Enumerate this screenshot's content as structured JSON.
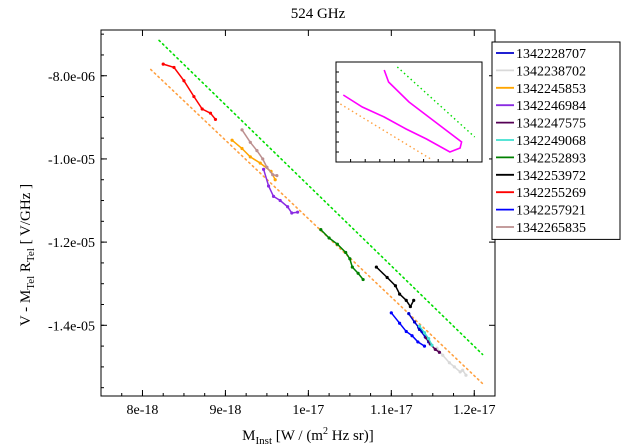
{
  "chart_data": {
    "type": "line",
    "title": "524 GHz",
    "xlabel": {
      "main": "M",
      "sub": "Inst",
      "rest": " [W / (m",
      "sup": "2",
      "rest2": " Hz sr)]"
    },
    "ylabel": {
      "p1": "V - M",
      "s1": "Tel",
      "p2": " R",
      "s2": "Tel",
      "p3": " [ V/GHz ]"
    },
    "xlim": [
      7.5e-18,
      1.225e-17
    ],
    "ylim": [
      -1.57e-05,
      -6.9e-06
    ],
    "x_ticks": [
      {
        "v": 8e-18,
        "label": "8e-18"
      },
      {
        "v": 9e-18,
        "label": "9e-18"
      },
      {
        "v": 1e-17,
        "label": "1e-17"
      },
      {
        "v": 1.1e-17,
        "label": "1.1e-17"
      },
      {
        "v": 1.2e-17,
        "label": "1.2e-17"
      }
    ],
    "y_ticks": [
      {
        "v": -8e-06,
        "label": "-8.0e-06"
      },
      {
        "v": -1e-05,
        "label": "-1.0e-05"
      },
      {
        "v": -1.2e-05,
        "label": "-1.2e-05"
      },
      {
        "v": -1.4e-05,
        "label": "-1.4e-05"
      }
    ],
    "legend_position": "right",
    "series": [
      {
        "name": "1342228707",
        "color": "#0000cc",
        "points": [
          [
            1.121e-17,
            -1.372e-05
          ],
          [
            1.128e-17,
            -1.392e-05
          ],
          [
            1.133e-17,
            -1.405e-05
          ],
          [
            1.137e-17,
            -1.415e-05
          ],
          [
            1.134e-17,
            -1.41e-05
          ],
          [
            1.141e-17,
            -1.428e-05
          ],
          [
            1.145e-17,
            -1.44e-05
          ]
        ]
      },
      {
        "name": "1342238702",
        "color": "#d9d9d9",
        "points": [
          [
            1.155e-17,
            -1.455e-05
          ],
          [
            1.162e-17,
            -1.472e-05
          ],
          [
            1.17e-17,
            -1.49e-05
          ],
          [
            1.176e-17,
            -1.5e-05
          ],
          [
            1.183e-17,
            -1.512e-05
          ],
          [
            1.186e-17,
            -1.508e-05
          ],
          [
            1.19e-17,
            -1.52e-05
          ]
        ]
      },
      {
        "name": "1342245853",
        "color": "#ffa500",
        "points": [
          [
            9.08e-18,
            -9.55e-06
          ],
          [
            9.2e-18,
            -9.75e-06
          ],
          [
            9.3e-18,
            -9.95e-06
          ],
          [
            9.42e-18,
            -1.01e-05
          ],
          [
            9.55e-18,
            -1.03e-05
          ],
          [
            9.6e-18,
            -1.05e-05
          ]
        ]
      },
      {
        "name": "1342246984",
        "color": "#8a2be2",
        "points": [
          [
            9.46e-18,
            -1.025e-05
          ],
          [
            9.52e-18,
            -1.065e-05
          ],
          [
            9.58e-18,
            -1.09e-05
          ],
          [
            9.66e-18,
            -1.1e-05
          ],
          [
            9.75e-18,
            -1.115e-05
          ],
          [
            9.8e-18,
            -1.13e-05
          ],
          [
            9.87e-18,
            -1.128e-05
          ]
        ]
      },
      {
        "name": "1342247575",
        "color": "#550055",
        "points": [
          [
            1.142e-17,
            -1.43e-05
          ],
          [
            1.147e-17,
            -1.445e-05
          ],
          [
            1.153e-17,
            -1.458e-05
          ],
          [
            1.158e-17,
            -1.465e-05
          ]
        ]
      },
      {
        "name": "1342249068",
        "color": "#40e0d0",
        "points": [
          [
            1.134e-17,
            -1.402e-05
          ],
          [
            1.14e-17,
            -1.418e-05
          ],
          [
            1.145e-17,
            -1.432e-05
          ],
          [
            1.149e-17,
            -1.448e-05
          ]
        ]
      },
      {
        "name": "1342252893",
        "color": "#008000",
        "points": [
          [
            1.015e-17,
            -1.17e-05
          ],
          [
            1.025e-17,
            -1.19e-05
          ],
          [
            1.035e-17,
            -1.205e-05
          ],
          [
            1.045e-17,
            -1.225e-05
          ],
          [
            1.05e-17,
            -1.24e-05
          ],
          [
            1.053e-17,
            -1.26e-05
          ],
          [
            1.06e-17,
            -1.275e-05
          ],
          [
            1.066e-17,
            -1.29e-05
          ]
        ]
      },
      {
        "name": "1342253972",
        "color": "#000000",
        "points": [
          [
            1.082e-17,
            -1.26e-05
          ],
          [
            1.095e-17,
            -1.285e-05
          ],
          [
            1.105e-17,
            -1.305e-05
          ],
          [
            1.11e-17,
            -1.325e-05
          ],
          [
            1.118e-17,
            -1.34e-05
          ],
          [
            1.123e-17,
            -1.355e-05
          ],
          [
            1.127e-17,
            -1.34e-05
          ]
        ]
      },
      {
        "name": "1342255269",
        "color": "#ff0000",
        "points": [
          [
            8.25e-18,
            -7.72e-06
          ],
          [
            8.38e-18,
            -7.8e-06
          ],
          [
            8.5e-18,
            -8.12e-06
          ],
          [
            8.62e-18,
            -8.5e-06
          ],
          [
            8.72e-18,
            -8.8e-06
          ],
          [
            8.82e-18,
            -8.9e-06
          ],
          [
            8.88e-18,
            -9.05e-06
          ]
        ]
      },
      {
        "name": "1342257921",
        "color": "#0000ff",
        "points": [
          [
            1.1e-17,
            -1.37e-05
          ],
          [
            1.11e-17,
            -1.395e-05
          ],
          [
            1.118e-17,
            -1.415e-05
          ],
          [
            1.125e-17,
            -1.425e-05
          ],
          [
            1.132e-17,
            -1.44e-05
          ],
          [
            1.14e-17,
            -1.45e-05
          ]
        ]
      },
      {
        "name": "1342265835",
        "color": "#bc8f8f",
        "points": [
          [
            9.2e-18,
            -9.3e-06
          ],
          [
            9.3e-18,
            -9.6e-06
          ],
          [
            9.38e-18,
            -9.8e-06
          ],
          [
            9.45e-18,
            -1e-05
          ],
          [
            9.5e-18,
            -1.02e-05
          ],
          [
            9.57e-18,
            -1.038e-05
          ],
          [
            9.62e-18,
            -1.04e-05
          ]
        ]
      }
    ],
    "fit_lines": [
      {
        "color": "#00dd00",
        "style": "dotted",
        "points": [
          [
            8.2e-18,
            -7.15e-06
          ],
          [
            1.21e-17,
            -1.47e-05
          ]
        ]
      },
      {
        "color": "#ffa040",
        "style": "dotted",
        "points": [
          [
            8.1e-18,
            -7.85e-06
          ],
          [
            1.21e-17,
            -1.54e-05
          ]
        ]
      }
    ],
    "inset": {
      "series_color": "#ff00ff",
      "points": [
        [
          0.05,
          0.33
        ],
        [
          0.18,
          0.45
        ],
        [
          0.33,
          0.55
        ],
        [
          0.48,
          0.67
        ],
        [
          0.62,
          0.77
        ],
        [
          0.78,
          0.9
        ],
        [
          0.85,
          0.86
        ],
        [
          0.86,
          0.8
        ],
        [
          0.68,
          0.6
        ],
        [
          0.5,
          0.4
        ],
        [
          0.36,
          0.2
        ],
        [
          0.33,
          0.08
        ]
      ],
      "fit_lines": [
        {
          "color": "#00dd00",
          "points": [
            [
              0.42,
              0.05
            ],
            [
              0.95,
              0.75
            ]
          ]
        },
        {
          "color": "#ffa040",
          "points": [
            [
              0.03,
              0.42
            ],
            [
              0.66,
              0.98
            ]
          ]
        }
      ]
    }
  }
}
